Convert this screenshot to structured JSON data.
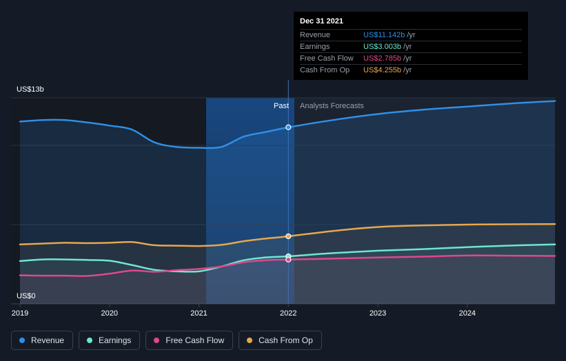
{
  "tooltip": {
    "date": "Dec 31 2021",
    "rows": [
      {
        "label": "Revenue",
        "value": "US$11.142b",
        "unit": "/yr",
        "color": "#2f8fe6"
      },
      {
        "label": "Earnings",
        "value": "US$3.003b",
        "unit": "/yr",
        "color": "#6ee7cf"
      },
      {
        "label": "Free Cash Flow",
        "value": "US$2.785b",
        "unit": "/yr",
        "color": "#e0488b"
      },
      {
        "label": "Cash From Op",
        "value": "US$4.255b",
        "unit": "/yr",
        "color": "#e8a74e"
      }
    ]
  },
  "legend": [
    {
      "label": "Revenue",
      "color": "#2f8fe6"
    },
    {
      "label": "Earnings",
      "color": "#6ee7cf"
    },
    {
      "label": "Free Cash Flow",
      "color": "#e0488b"
    },
    {
      "label": "Cash From Op",
      "color": "#e8a74e"
    }
  ],
  "chart_data": {
    "type": "line",
    "y_top_label": "US$13b",
    "y_bottom_label": "US$0",
    "ylim": [
      0,
      13
    ],
    "xlim": [
      2018.9,
      2024.98
    ],
    "x_ticks": [
      "2019",
      "2020",
      "2021",
      "2022",
      "2023",
      "2024"
    ],
    "x_tick_values": [
      2019,
      2020,
      2021,
      2022,
      2023,
      2024
    ],
    "past_label": "Past",
    "forecast_label": "Analysts Forecasts",
    "divider_x": 2022.0,
    "highlight_start_x": 2021.0,
    "grid": true,
    "legend_position": "bottom-left",
    "series": [
      {
        "name": "Revenue",
        "color": "#2f8fe6",
        "fill": true,
        "x": [
          2019.0,
          2019.25,
          2019.5,
          2019.75,
          2020.0,
          2020.25,
          2020.5,
          2020.75,
          2021.0,
          2021.25,
          2021.5,
          2021.75,
          2022.0,
          2022.5,
          2023.0,
          2023.5,
          2024.0,
          2024.5,
          2024.98
        ],
        "y": [
          11.5,
          11.6,
          11.6,
          11.45,
          11.25,
          11.0,
          10.2,
          9.9,
          9.85,
          9.9,
          10.55,
          10.85,
          11.14,
          11.6,
          11.98,
          12.25,
          12.45,
          12.65,
          12.8
        ]
      },
      {
        "name": "Cash From Op",
        "color": "#e8a74e",
        "fill": false,
        "x": [
          2019.0,
          2019.25,
          2019.5,
          2019.75,
          2020.0,
          2020.25,
          2020.5,
          2020.75,
          2021.0,
          2021.25,
          2021.5,
          2021.75,
          2022.0,
          2022.5,
          2023.0,
          2023.5,
          2024.0,
          2024.5,
          2024.98
        ],
        "y": [
          3.75,
          3.8,
          3.85,
          3.83,
          3.85,
          3.9,
          3.7,
          3.67,
          3.65,
          3.72,
          3.95,
          4.12,
          4.26,
          4.6,
          4.85,
          4.95,
          5.0,
          5.02,
          5.03
        ]
      },
      {
        "name": "Earnings",
        "color": "#6ee7cf",
        "fill": false,
        "x": [
          2019.0,
          2019.25,
          2019.5,
          2019.75,
          2020.0,
          2020.25,
          2020.5,
          2020.75,
          2021.0,
          2021.25,
          2021.5,
          2021.75,
          2022.0,
          2022.5,
          2023.0,
          2023.5,
          2024.0,
          2024.5,
          2024.98
        ],
        "y": [
          2.7,
          2.8,
          2.8,
          2.77,
          2.72,
          2.45,
          2.15,
          2.05,
          2.05,
          2.35,
          2.75,
          2.93,
          3.0,
          3.2,
          3.35,
          3.45,
          3.58,
          3.68,
          3.75
        ]
      },
      {
        "name": "Free Cash Flow",
        "color": "#e0488b",
        "fill": false,
        "x": [
          2019.0,
          2019.25,
          2019.5,
          2019.75,
          2020.0,
          2020.25,
          2020.5,
          2020.75,
          2021.0,
          2021.25,
          2021.5,
          2021.75,
          2022.0,
          2022.5,
          2023.0,
          2023.5,
          2024.0,
          2024.5,
          2024.98
        ],
        "y": [
          1.8,
          1.78,
          1.78,
          1.76,
          1.9,
          2.1,
          2.02,
          2.12,
          2.2,
          2.35,
          2.62,
          2.75,
          2.79,
          2.85,
          2.92,
          2.98,
          3.05,
          3.04,
          3.02
        ]
      }
    ]
  }
}
